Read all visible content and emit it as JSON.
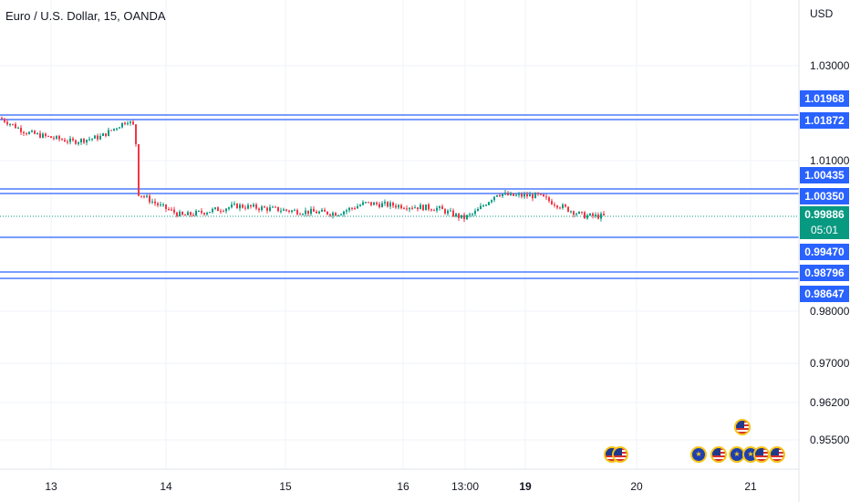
{
  "header": {
    "symbol_title": "Euro / U.S. Dollar, 15, OANDA",
    "currency": "USD"
  },
  "price_axis": {
    "ticks": [
      "1.03000",
      "1.01000",
      "0.98000",
      "0.97000",
      "0.96200",
      "0.95500"
    ]
  },
  "horizontal_lines": [
    {
      "price": 1.01968,
      "label": "1.01968"
    },
    {
      "price": 1.01872,
      "label": "1.01872"
    },
    {
      "price": 1.00435,
      "label": "1.00435"
    },
    {
      "price": 1.0035,
      "label": "1.00350"
    },
    {
      "price": 0.9947,
      "label": "0.99470"
    },
    {
      "price": 0.98796,
      "label": "0.98796"
    },
    {
      "price": 0.98647,
      "label": "0.98647"
    }
  ],
  "current_price": {
    "value": "0.99886",
    "countdown": "05:01"
  },
  "time_axis": {
    "ticks": [
      "13",
      "14",
      "15",
      "16",
      "13:00",
      "19",
      "20",
      "21"
    ]
  },
  "events": [
    {
      "flag": "us",
      "label": "US event"
    },
    {
      "flag": "us",
      "label": "US event"
    },
    {
      "flag": "eu",
      "label": "EU event"
    },
    {
      "flag": "us",
      "label": "US event"
    },
    {
      "flag": "eu",
      "label": "EU event"
    },
    {
      "flag": "eu",
      "label": "EU event"
    },
    {
      "flag": "us",
      "label": "US event"
    },
    {
      "flag": "us",
      "label": "US event"
    },
    {
      "flag": "us",
      "label": "US event"
    }
  ],
  "colors": {
    "up": "#089981",
    "down": "#f23645",
    "level_line": "#2962ff",
    "current_line": "#089981",
    "grid": "#f0f3fa"
  },
  "chart_data": {
    "type": "line",
    "title": "Euro / U.S. Dollar, 15, OANDA",
    "xlabel": "",
    "ylabel": "USD",
    "x": [
      "13",
      "13.5",
      "13.9",
      "14",
      "14.2",
      "14.5",
      "15",
      "15.3",
      "15.6",
      "16",
      "16.5",
      "16.7",
      "17",
      "17.5",
      "18",
      "19",
      "19.3",
      "19.6"
    ],
    "series": [
      {
        "values": [
          1.019,
          1.017,
          1.0185,
          1.004,
          1.0015,
          1.001,
          1.002,
          1.0005,
          1.001,
          1.003,
          1.002,
          0.998,
          1.0035,
          1.0025,
          1.0035,
          0.9995,
          0.9985,
          0.9989
        ]
      }
    ],
    "ylim": [
      0.95,
      1.035
    ],
    "grid": true,
    "legend": "none"
  }
}
